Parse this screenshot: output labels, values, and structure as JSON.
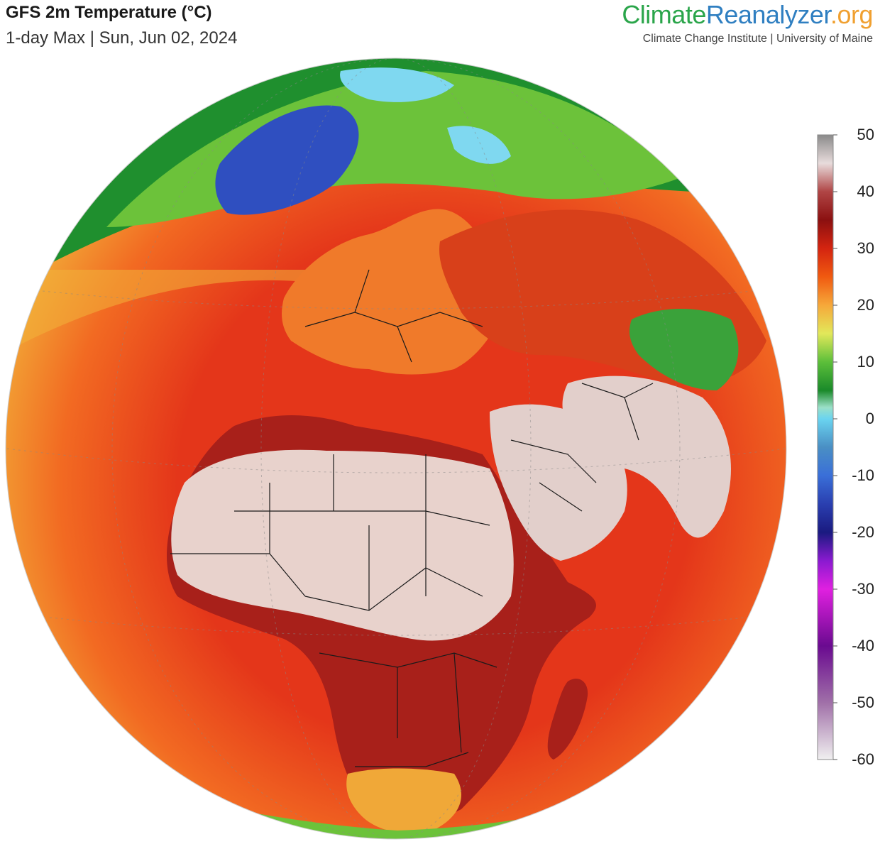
{
  "header": {
    "title": "GFS 2m Temperature (°C)",
    "subtitle": "1-day Max | Sun, Jun 02, 2024"
  },
  "brand": {
    "part1": "Climate",
    "part2": "Reanalyzer",
    "part3": ".org",
    "color1": "#2aa54a",
    "color2": "#2f7fc1",
    "color3": "#f0a030",
    "tagline": "Climate Change Institute | University of Maine"
  },
  "legend": {
    "ticks": [
      "50",
      "40",
      "30",
      "20",
      "10",
      "0",
      "-10",
      "-20",
      "-30",
      "-40",
      "-50",
      "-60"
    ],
    "stops": [
      {
        "value": 50,
        "color": "#8a8a8a"
      },
      {
        "value": 45,
        "color": "#e8dcdc"
      },
      {
        "value": 40,
        "color": "#b04545"
      },
      {
        "value": 35,
        "color": "#8b1010"
      },
      {
        "value": 30,
        "color": "#d42410"
      },
      {
        "value": 25,
        "color": "#f05a10"
      },
      {
        "value": 20,
        "color": "#f6a83a"
      },
      {
        "value": 15,
        "color": "#e2e85a"
      },
      {
        "value": 10,
        "color": "#5cbf3a"
      },
      {
        "value": 5,
        "color": "#1a8a2a"
      },
      {
        "value": 2,
        "color": "#9be0c8"
      },
      {
        "value": 0,
        "color": "#6ad4f0"
      },
      {
        "value": -5,
        "color": "#4a8fc4"
      },
      {
        "value": -10,
        "color": "#3a6fd8"
      },
      {
        "value": -15,
        "color": "#2a3fb0"
      },
      {
        "value": -20,
        "color": "#1a1a80"
      },
      {
        "value": -25,
        "color": "#8a1ad0"
      },
      {
        "value": -30,
        "color": "#e020e0"
      },
      {
        "value": -40,
        "color": "#6a0a90"
      },
      {
        "value": -50,
        "color": "#a070a8"
      },
      {
        "value": -60,
        "color": "#f0f0f0"
      }
    ]
  },
  "map": {
    "type": "orthographic globe",
    "region": "Europe, Africa and the Middle East",
    "colors": {
      "ocean_warm": "#e4361a",
      "ocean_mild": "#f26a22",
      "ocean_cool": "#f2b23a",
      "ocean_cold": "#6cc23a",
      "arctic": "#1f8f2e",
      "greenland": "#2f4fc0",
      "ice": "#7fd8f0",
      "sahara": "#e8d2cc",
      "arabia": "#e2cfcb",
      "land_hot": "#a8201a",
      "land_warm": "#d8401a",
      "europe": "#f07a2a",
      "southern_africa": "#f0a838",
      "himalaya": "#3aa23a",
      "border": "#1a1a1a"
    }
  }
}
